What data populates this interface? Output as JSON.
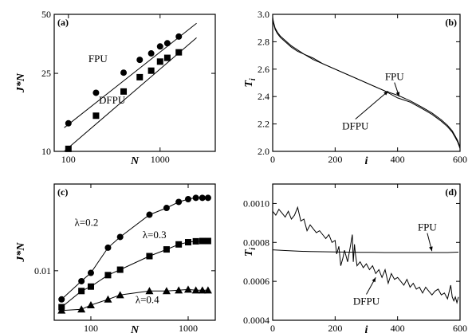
{
  "chart_data": [
    {
      "panel": "(a)",
      "type": "scatter",
      "xlabel": "N",
      "ylabel": "J*N",
      "xscale": "log",
      "yscale": "log",
      "xlim": [
        70,
        4000
      ],
      "ylim": [
        10,
        50
      ],
      "xticks": [
        {
          "v": 100,
          "label": "100"
        },
        {
          "v": 1000,
          "label": "1000"
        }
      ],
      "yticks": [
        {
          "v": 10,
          "label": "10"
        },
        {
          "v": 25,
          "label": "25"
        },
        {
          "v": 50,
          "label": "50"
        }
      ],
      "grid": false,
      "series": [
        {
          "name": "FPU",
          "marker": "circle",
          "x": [
            100,
            200,
            400,
            600,
            800,
            1000,
            1200,
            1600
          ],
          "y": [
            13.9,
            19.9,
            25.2,
            29.3,
            31.6,
            34.3,
            35.6,
            38.5
          ],
          "fit": [
            [
              90,
              13.2
            ],
            [
              2500,
              45.0
            ]
          ]
        },
        {
          "name": "DFPU",
          "marker": "square",
          "x": [
            100,
            200,
            400,
            600,
            800,
            1000,
            1200,
            1600
          ],
          "y": [
            10.3,
            15.2,
            20.2,
            23.9,
            25.8,
            28.7,
            30.0,
            32.0
          ],
          "fit": [
            [
              90,
              10.0
            ],
            [
              2500,
              38.0
            ]
          ]
        }
      ],
      "annotations": [
        {
          "text": "FPU",
          "x": 210,
          "y": 28.5
        },
        {
          "text": "DFPU",
          "x": 300,
          "y": 17.5
        }
      ]
    },
    {
      "panel": "(b)",
      "type": "line",
      "xlabel": "i",
      "ylabel": "T_i",
      "xlim": [
        0,
        600
      ],
      "ylim": [
        2.0,
        3.0
      ],
      "xticks": [
        {
          "v": 0,
          "label": "0"
        },
        {
          "v": 200,
          "label": "200"
        },
        {
          "v": 400,
          "label": "400"
        },
        {
          "v": 600,
          "label": "600"
        }
      ],
      "yticks": [
        {
          "v": 2.0,
          "label": "2.0"
        },
        {
          "v": 2.2,
          "label": "2.2"
        },
        {
          "v": 2.4,
          "label": "2.4"
        },
        {
          "v": 2.6,
          "label": "2.6"
        },
        {
          "v": 2.8,
          "label": "2.8"
        },
        {
          "v": 3.0,
          "label": "3.0"
        }
      ],
      "grid": false,
      "series": [
        {
          "name": "FPU",
          "x": [
            0,
            3,
            8,
            15,
            25,
            40,
            60,
            80,
            100,
            130,
            160,
            200,
            240,
            280,
            320,
            360,
            400,
            440,
            480,
            510,
            540,
            560,
            575,
            585,
            592,
            597,
            600
          ],
          "y": [
            2.98,
            2.93,
            2.89,
            2.86,
            2.83,
            2.8,
            2.76,
            2.73,
            2.71,
            2.67,
            2.64,
            2.6,
            2.56,
            2.52,
            2.48,
            2.44,
            2.41,
            2.37,
            2.32,
            2.28,
            2.23,
            2.19,
            2.15,
            2.11,
            2.08,
            2.05,
            2.03
          ]
        },
        {
          "name": "DFPU",
          "x": [
            0,
            3,
            8,
            15,
            25,
            40,
            60,
            80,
            100,
            130,
            160,
            200,
            240,
            280,
            320,
            360,
            400,
            440,
            480,
            510,
            540,
            560,
            575,
            585,
            592,
            597,
            600
          ],
          "y": [
            2.97,
            2.94,
            2.9,
            2.87,
            2.84,
            2.81,
            2.77,
            2.74,
            2.71,
            2.68,
            2.64,
            2.6,
            2.56,
            2.52,
            2.48,
            2.44,
            2.39,
            2.36,
            2.31,
            2.27,
            2.22,
            2.18,
            2.14,
            2.1,
            2.07,
            2.04,
            2.02
          ]
        }
      ],
      "annotations": [
        {
          "text": "FPU",
          "x": 390,
          "y": 2.52,
          "arrow_to": [
            405,
            2.4
          ]
        },
        {
          "text": "DFPU",
          "x": 265,
          "y": 2.16,
          "arrow_to": [
            370,
            2.44
          ]
        }
      ]
    },
    {
      "panel": "(c)",
      "type": "scatter",
      "xlabel": "N",
      "ylabel": "J*N",
      "xscale": "log",
      "yscale": "log",
      "xlim": [
        42,
        1900
      ],
      "ylim": [
        0.0039,
        0.052
      ],
      "xticks": [
        {
          "v": 100,
          "label": "100"
        },
        {
          "v": 1000,
          "label": "1000"
        }
      ],
      "yticks": [
        {
          "v": 0.01,
          "label": "0.01"
        }
      ],
      "grid": false,
      "series": [
        {
          "name": "λ=0.2",
          "marker": "circle",
          "x": [
            50,
            80,
            100,
            150,
            200,
            400,
            600,
            800,
            1000,
            1200,
            1400,
            1600
          ],
          "y": [
            0.0058,
            0.0082,
            0.0096,
            0.0155,
            0.019,
            0.029,
            0.033,
            0.037,
            0.039,
            0.04,
            0.04,
            0.04
          ]
        },
        {
          "name": "λ=0.3",
          "marker": "square",
          "x": [
            50,
            80,
            100,
            150,
            200,
            400,
            600,
            800,
            1000,
            1200,
            1400,
            1600
          ],
          "y": [
            0.005,
            0.0068,
            0.0074,
            0.0092,
            0.0102,
            0.0132,
            0.015,
            0.0165,
            0.0172,
            0.0175,
            0.0176,
            0.0176
          ]
        },
        {
          "name": "λ=0.4",
          "marker": "triangle",
          "x": [
            50,
            80,
            100,
            150,
            200,
            400,
            600,
            800,
            1000,
            1200,
            1400,
            1600
          ],
          "y": [
            0.0047,
            0.0048,
            0.0052,
            0.0058,
            0.0063,
            0.0068,
            0.0068,
            0.0069,
            0.007,
            0.0069,
            0.0069,
            0.0069
          ]
        }
      ],
      "annotations": [
        {
          "text": "λ=0.2",
          "x": 90,
          "y": 0.0235
        },
        {
          "text": "λ=0.3",
          "x": 450,
          "y": 0.0185
        },
        {
          "text": "λ=0.4",
          "x": 380,
          "y": 0.0054
        }
      ]
    },
    {
      "panel": "(d)",
      "type": "line",
      "xlabel": "i",
      "ylabel": "T_i",
      "xlim": [
        0,
        600
      ],
      "ylim": [
        0.0004,
        0.0011
      ],
      "xticks": [
        {
          "v": 0,
          "label": "0"
        },
        {
          "v": 200,
          "label": "200"
        },
        {
          "v": 400,
          "label": "400"
        },
        {
          "v": 600,
          "label": "600"
        }
      ],
      "yticks": [
        {
          "v": 0.0004,
          "label": "0.0004"
        },
        {
          "v": 0.0006,
          "label": "0.0006"
        },
        {
          "v": 0.0008,
          "label": "0.0008"
        },
        {
          "v": 0.001,
          "label": "0.0010"
        }
      ],
      "grid": false,
      "series": [
        {
          "name": "FPU",
          "x": [
            0,
            40,
            80,
            120,
            160,
            200,
            240,
            280,
            320,
            360,
            400,
            440,
            480,
            520,
            560,
            595
          ],
          "y": [
            0.000762,
            0.000758,
            0.000755,
            0.000753,
            0.000752,
            0.000751,
            0.00075,
            0.000749,
            0.000749,
            0.000748,
            0.000748,
            0.000748,
            0.000748,
            0.000748,
            0.000748,
            0.00075
          ]
        },
        {
          "name": "DFPU",
          "x": [
            0,
            10,
            20,
            30,
            40,
            50,
            60,
            70,
            80,
            90,
            100,
            110,
            120,
            130,
            140,
            150,
            160,
            170,
            180,
            190,
            200,
            205,
            212,
            218,
            225,
            230,
            240,
            250,
            255,
            258,
            262,
            265,
            270,
            280,
            290,
            300,
            310,
            320,
            330,
            340,
            350,
            360,
            370,
            380,
            390,
            400,
            410,
            420,
            430,
            440,
            450,
            460,
            470,
            480,
            490,
            500,
            510,
            520,
            530,
            540,
            550,
            560,
            570,
            575,
            580,
            585,
            590,
            595
          ],
          "y": [
            0.00096,
            0.00094,
            0.00097,
            0.00095,
            0.00093,
            0.00096,
            0.00092,
            0.00094,
            0.00098,
            0.00091,
            0.00092,
            0.00086,
            0.00089,
            0.00087,
            0.00085,
            0.00086,
            0.00084,
            0.00082,
            0.00084,
            0.0008,
            0.00081,
            0.00074,
            0.00078,
            0.00068,
            0.00072,
            0.00076,
            0.0007,
            0.00079,
            0.00084,
            0.0007,
            0.00079,
            0.00074,
            0.00068,
            0.0007,
            0.00067,
            0.00069,
            0.00066,
            0.00068,
            0.00064,
            0.00066,
            0.00062,
            0.00066,
            0.00059,
            0.00064,
            0.00061,
            0.00062,
            0.0006,
            0.00058,
            0.00061,
            0.00057,
            0.00059,
            0.00056,
            0.00057,
            0.00054,
            0.00057,
            0.00055,
            0.00053,
            0.00055,
            0.00056,
            0.00053,
            0.00054,
            0.00051,
            0.00058,
            0.00052,
            0.0005,
            0.00052,
            0.00049,
            0.00052
          ]
        }
      ],
      "annotations": [
        {
          "text": "FPU",
          "x": 495,
          "y": 0.00086,
          "arrow_to": [
            510,
            0.000755
          ]
        },
        {
          "text": "DFPU",
          "x": 300,
          "y": 0.00048,
          "arrow_to": [
            330,
            0.00062
          ]
        }
      ]
    }
  ]
}
